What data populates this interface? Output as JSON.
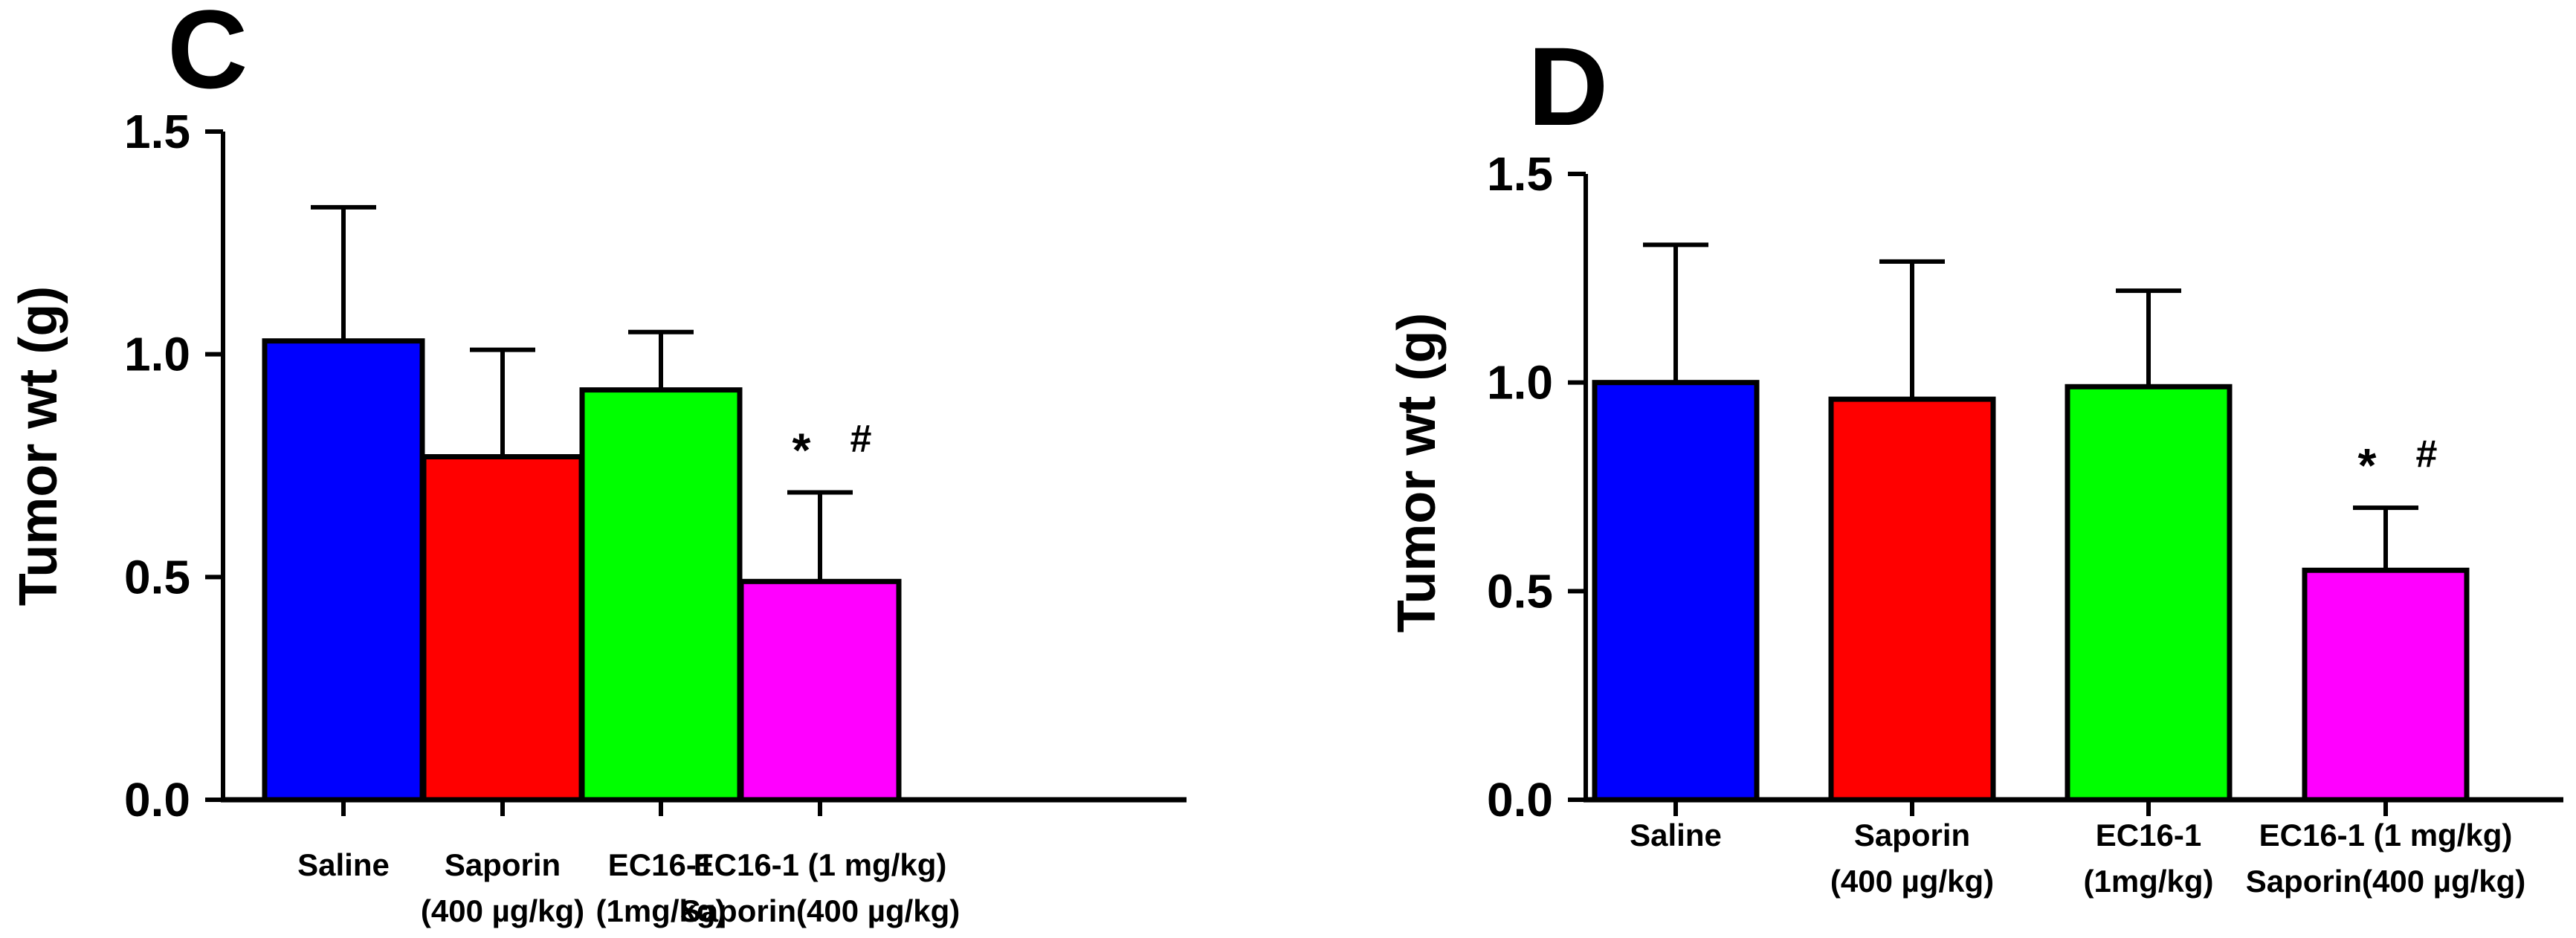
{
  "chart_data": [
    {
      "type": "bar",
      "panel": "C",
      "ylabel": "Tumor wt (g)",
      "xlabel": "",
      "ylim": [
        0,
        1.5
      ],
      "yticks": [
        "0.0",
        "0.5",
        "1.0",
        "1.5"
      ],
      "categories": [
        [
          "Saline"
        ],
        [
          "Saporin",
          "(400 µg/kg)"
        ],
        [
          "EC16-1",
          "(1mg/kg)"
        ],
        [
          "EC16-1 (1 mg/kg)",
          "Saporin(400 µg/kg)"
        ]
      ],
      "values": [
        1.03,
        0.77,
        0.92,
        0.49
      ],
      "errors": [
        0.3,
        0.24,
        0.13,
        0.2
      ],
      "colors": [
        "#0000ff",
        "#ff0000",
        "#00ff00",
        "#ff00ff"
      ],
      "annotations": [
        {
          "category_index": 3,
          "star": "*",
          "hash": "#"
        }
      ]
    },
    {
      "type": "bar",
      "panel": "D",
      "ylabel": "Tumor wt (g)",
      "xlabel": "",
      "ylim": [
        0,
        1.5
      ],
      "yticks": [
        "0.0",
        "0.5",
        "1.0",
        "1.5"
      ],
      "categories": [
        [
          "Saline"
        ],
        [
          "Saporin",
          "(400 µg/kg)"
        ],
        [
          "EC16-1",
          "(1mg/kg)"
        ],
        [
          "EC16-1 (1 mg/kg)",
          "Saporin(400 µg/kg)"
        ]
      ],
      "values": [
        1.0,
        0.96,
        0.99,
        0.55
      ],
      "errors": [
        0.33,
        0.33,
        0.23,
        0.15
      ],
      "colors": [
        "#0000ff",
        "#ff0000",
        "#00ff00",
        "#ff00ff"
      ],
      "annotations": [
        {
          "category_index": 3,
          "star": "*",
          "hash": "#"
        }
      ]
    }
  ]
}
